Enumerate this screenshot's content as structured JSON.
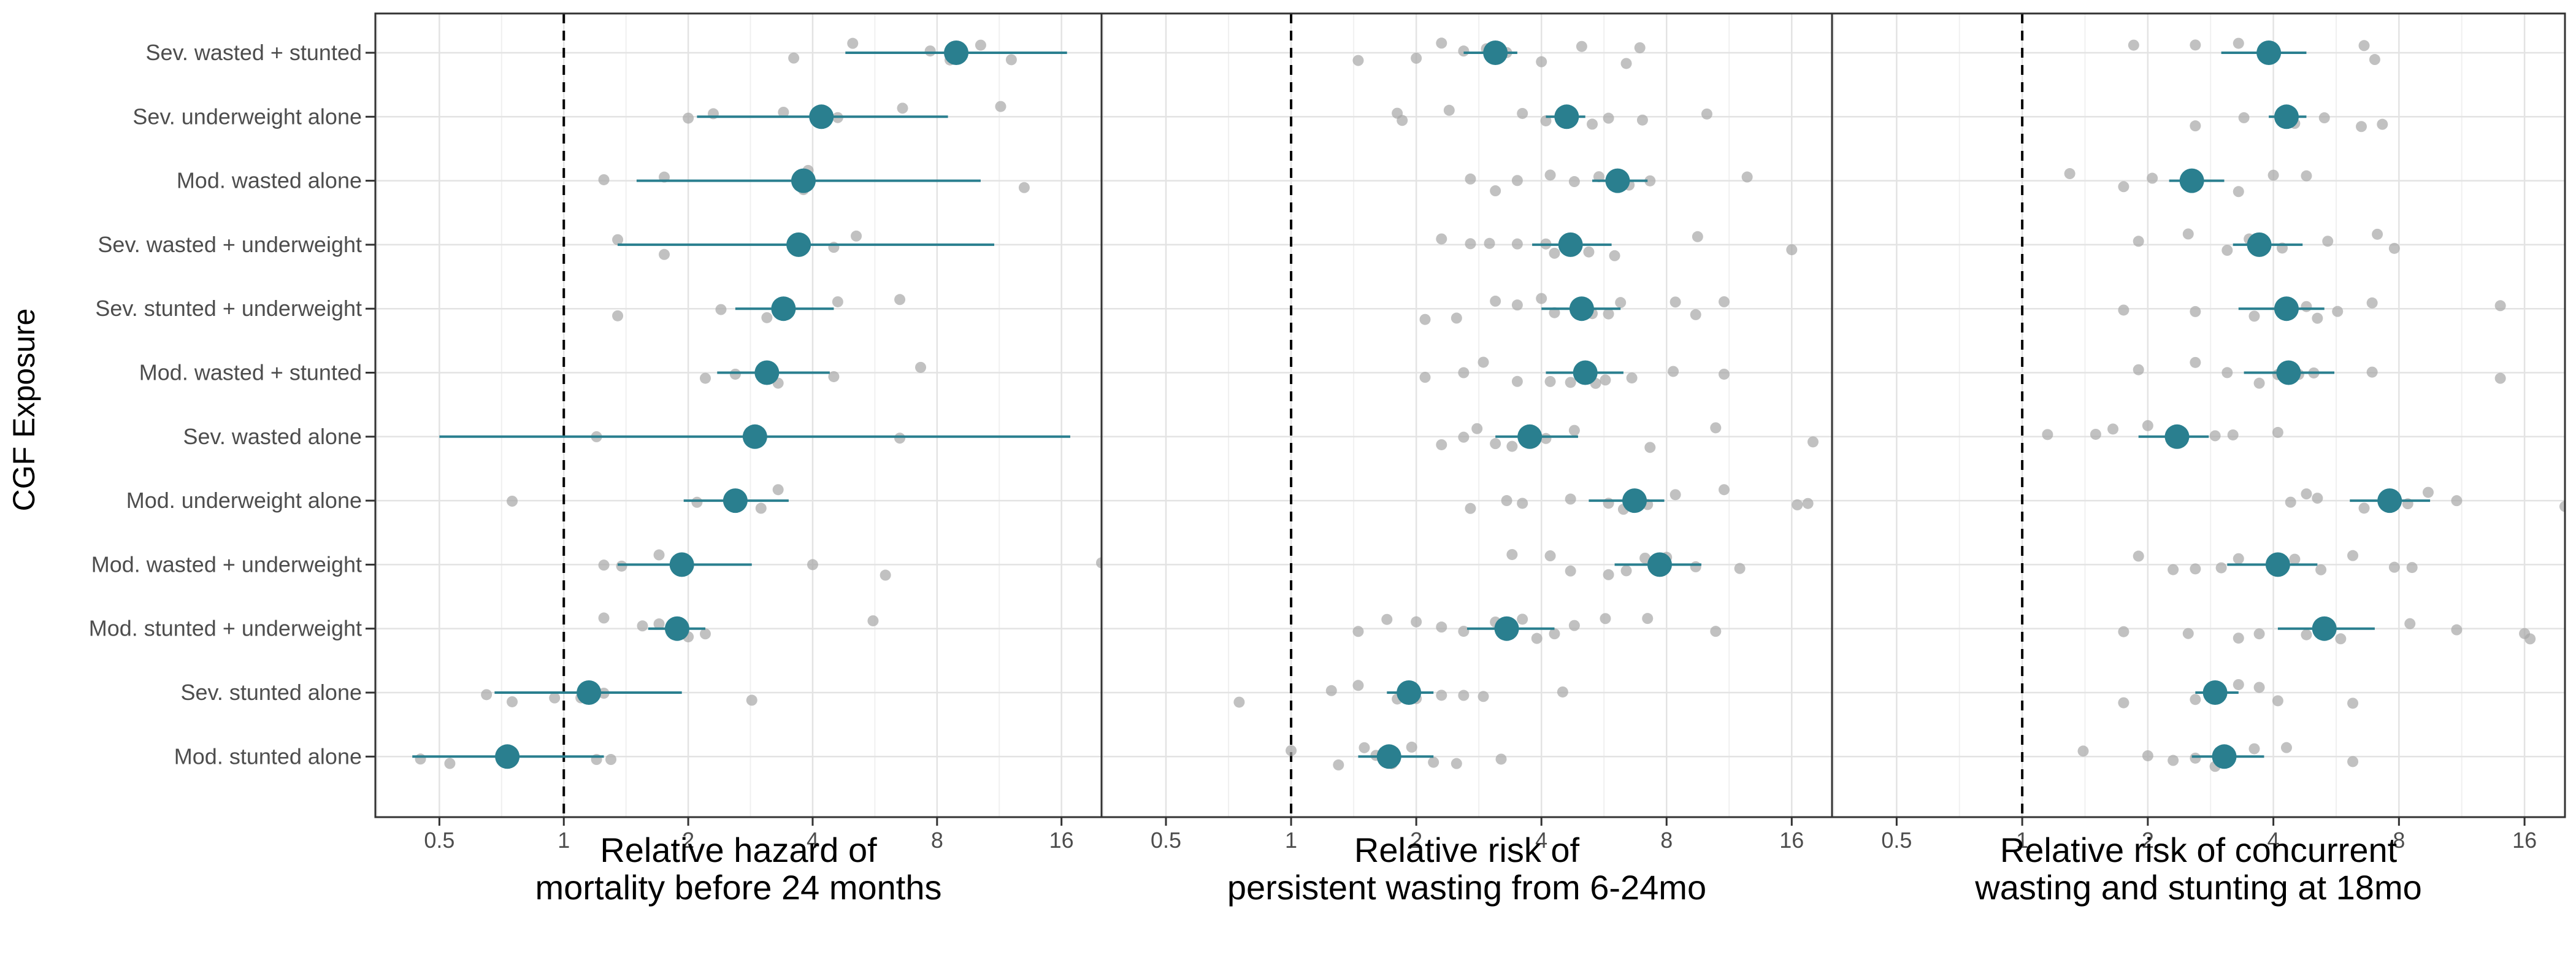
{
  "chart_data": {
    "type": "forest",
    "facet_direction": "horizontal",
    "ylabel": "CGF Exposure",
    "categories": [
      "Sev. wasted + stunted",
      "Sev. underweight alone",
      "Mod. wasted alone",
      "Sev. wasted + underweight",
      "Sev. stunted + underweight",
      "Mod. wasted + stunted",
      "Sev. wasted alone",
      "Mod. underweight alone",
      "Mod. wasted + underweight",
      "Mod. stunted + underweight",
      "Sev. stunted alone",
      "Mod. stunted alone"
    ],
    "x_scale": "log2",
    "x_ticks": [
      "0.5",
      "1",
      "2",
      "4",
      "8",
      "16"
    ],
    "x_tick_values": [
      0.5,
      1,
      2,
      4,
      8,
      16
    ],
    "xlim": [
      0.35,
      20
    ],
    "reference_line": 1,
    "grid": true,
    "colors": {
      "estimate": "#2a7f8f",
      "study_points": "#a6a6a6",
      "reference": "#000000"
    },
    "panels": [
      {
        "xlabel_line1": "Relative hazard of",
        "xlabel_line2": "mortality before 24 months",
        "estimates": [
          {
            "est": 8.9,
            "lo": 4.8,
            "hi": 16.5
          },
          {
            "est": 4.2,
            "lo": 2.1,
            "hi": 8.5
          },
          {
            "est": 3.8,
            "lo": 1.5,
            "hi": 10.2
          },
          {
            "est": 3.7,
            "lo": 1.35,
            "hi": 11.0
          },
          {
            "est": 3.4,
            "lo": 2.6,
            "hi": 4.5
          },
          {
            "est": 3.1,
            "lo": 2.35,
            "hi": 4.4
          },
          {
            "est": 2.9,
            "lo": 0.5,
            "hi": 16.8
          },
          {
            "est": 2.6,
            "lo": 1.95,
            "hi": 3.5
          },
          {
            "est": 1.93,
            "lo": 1.35,
            "hi": 2.85
          },
          {
            "est": 1.88,
            "lo": 1.6,
            "hi": 2.2
          },
          {
            "est": 1.15,
            "lo": 0.68,
            "hi": 1.93
          },
          {
            "est": 0.73,
            "lo": 0.43,
            "hi": 1.25
          }
        ],
        "studies": [
          [
            3.6,
            5.0,
            7.7,
            8.6,
            10.2,
            12.1
          ],
          [
            2.0,
            2.3,
            3.4,
            4.6,
            6.6,
            11.4
          ],
          [
            1.25,
            1.75,
            3.8,
            3.9,
            13.0
          ],
          [
            1.35,
            1.75,
            4.5,
            5.1
          ],
          [
            1.35,
            2.4,
            3.1,
            3.5,
            4.6,
            6.5
          ],
          [
            2.2,
            2.6,
            3.1,
            3.3,
            4.5,
            7.3
          ],
          [
            1.2,
            6.5
          ],
          [
            0.75,
            2.1,
            3.0,
            3.3
          ],
          [
            1.25,
            1.38,
            1.7,
            4.0,
            6.0,
            20.0
          ],
          [
            1.25,
            1.55,
            1.7,
            1.85,
            2.0,
            2.2,
            5.6
          ],
          [
            0.65,
            0.75,
            0.95,
            1.1,
            1.25,
            2.85
          ],
          [
            0.45,
            0.53,
            1.2,
            1.3
          ]
        ]
      },
      {
        "xlabel_line1": "Relative risk of",
        "xlabel_line2": "persistent wasting from 6-24mo",
        "estimates": [
          {
            "est": 3.1,
            "lo": 2.6,
            "hi": 3.5
          },
          {
            "est": 4.6,
            "lo": 4.1,
            "hi": 5.1
          },
          {
            "est": 6.1,
            "lo": 5.3,
            "hi": 7.2
          },
          {
            "est": 4.7,
            "lo": 3.8,
            "hi": 5.9
          },
          {
            "est": 5.0,
            "lo": 4.0,
            "hi": 6.2
          },
          {
            "est": 5.1,
            "lo": 4.1,
            "hi": 6.3
          },
          {
            "est": 3.75,
            "lo": 3.1,
            "hi": 4.9
          },
          {
            "est": 6.7,
            "lo": 5.2,
            "hi": 7.9
          },
          {
            "est": 7.7,
            "lo": 6.0,
            "hi": 9.7
          },
          {
            "est": 3.3,
            "lo": 2.65,
            "hi": 4.3
          },
          {
            "est": 1.92,
            "lo": 1.7,
            "hi": 2.2
          },
          {
            "est": 1.72,
            "lo": 1.45,
            "hi": 2.2
          }
        ],
        "studies": [
          [
            1.45,
            2.0,
            2.3,
            2.6,
            2.95,
            3.3,
            4.0,
            5.0,
            6.4,
            6.9
          ],
          [
            1.8,
            1.85,
            2.4,
            3.6,
            4.1,
            5.3,
            5.8,
            7.0,
            10.0
          ],
          [
            2.7,
            3.1,
            3.5,
            4.2,
            4.8,
            5.5,
            6.5,
            7.3,
            12.5
          ],
          [
            2.3,
            2.7,
            3.0,
            3.5,
            4.1,
            4.3,
            5.2,
            6.0,
            9.5,
            16.0
          ],
          [
            2.1,
            2.5,
            3.1,
            3.5,
            4.0,
            4.3,
            5.3,
            5.8,
            6.2,
            8.4,
            9.4,
            11.0
          ],
          [
            2.1,
            2.6,
            2.9,
            3.5,
            4.2,
            4.7,
            5.4,
            5.7,
            6.6,
            8.3,
            11.0
          ],
          [
            2.3,
            2.6,
            2.8,
            3.1,
            3.4,
            4.1,
            4.8,
            7.3,
            10.5,
            18.0
          ],
          [
            2.7,
            3.3,
            3.6,
            4.7,
            5.8,
            6.3,
            7.2,
            8.4,
            11.0,
            16.5,
            17.5
          ],
          [
            3.4,
            4.2,
            4.7,
            5.8,
            6.4,
            7.1,
            8.0,
            9.4,
            12.0
          ],
          [
            1.45,
            1.7,
            2.0,
            2.3,
            2.6,
            3.1,
            3.6,
            3.9,
            4.3,
            4.8,
            5.7,
            7.2,
            10.5
          ],
          [
            0.75,
            1.25,
            1.45,
            1.8,
            2.0,
            2.3,
            2.6,
            2.9,
            4.5
          ],
          [
            1.0,
            1.3,
            1.5,
            1.6,
            1.75,
            1.95,
            2.2,
            2.5,
            3.2
          ]
        ]
      },
      {
        "xlabel_line1": "Relative risk of concurrent",
        "xlabel_line2": "wasting and stunting at 18mo",
        "estimates": [
          {
            "est": 3.9,
            "lo": 3.0,
            "hi": 4.8
          },
          {
            "est": 4.3,
            "lo": 3.9,
            "hi": 4.8
          },
          {
            "est": 2.55,
            "lo": 2.25,
            "hi": 3.05
          },
          {
            "est": 3.7,
            "lo": 3.2,
            "hi": 4.7
          },
          {
            "est": 4.3,
            "lo": 3.3,
            "hi": 5.3
          },
          {
            "est": 4.35,
            "lo": 3.4,
            "hi": 5.6
          },
          {
            "est": 2.35,
            "lo": 1.9,
            "hi": 2.8
          },
          {
            "est": 7.6,
            "lo": 6.1,
            "hi": 9.5
          },
          {
            "est": 4.1,
            "lo": 3.1,
            "hi": 5.1
          },
          {
            "est": 5.3,
            "lo": 4.1,
            "hi": 7.0
          },
          {
            "est": 2.9,
            "lo": 2.6,
            "hi": 3.3
          },
          {
            "est": 3.05,
            "lo": 2.55,
            "hi": 3.8
          }
        ],
        "studies": [
          [
            1.85,
            2.6,
            3.3,
            4.0,
            6.6,
            7.0
          ],
          [
            2.6,
            3.4,
            4.5,
            5.3,
            6.5,
            7.3
          ],
          [
            1.3,
            1.75,
            2.05,
            2.5,
            3.3,
            4.0,
            4.8
          ],
          [
            1.9,
            2.5,
            3.1,
            3.5,
            4.2,
            5.4,
            7.1,
            7.8
          ],
          [
            1.75,
            2.6,
            3.6,
            4.8,
            5.1,
            5.7,
            6.9,
            14.0
          ],
          [
            1.9,
            2.6,
            3.1,
            3.7,
            4.1,
            4.6,
            5.0,
            6.9,
            14.0
          ],
          [
            1.15,
            1.5,
            1.65,
            2.0,
            2.3,
            2.9,
            3.2,
            4.1
          ],
          [
            4.4,
            4.8,
            5.1,
            6.6,
            8.4,
            9.4,
            11.0,
            20.0
          ],
          [
            1.9,
            2.3,
            2.6,
            3.0,
            3.3,
            4.5,
            5.2,
            6.2,
            7.8,
            8.6
          ],
          [
            1.75,
            2.5,
            3.3,
            3.7,
            4.8,
            5.8,
            8.5,
            11.0,
            16.0,
            16.5
          ],
          [
            1.75,
            2.6,
            3.3,
            3.7,
            4.1,
            6.2
          ],
          [
            1.4,
            2.0,
            2.3,
            2.6,
            2.9,
            3.6,
            4.3,
            6.2
          ]
        ]
      }
    ]
  }
}
